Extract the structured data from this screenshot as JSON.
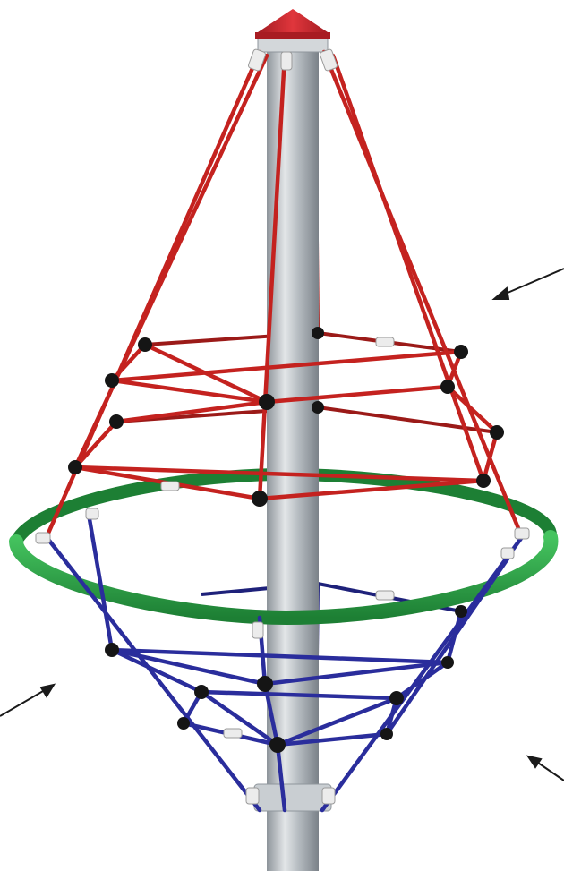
{
  "scene": {
    "subject_icon": "rope-climbing-spinner-icon",
    "colors": {
      "background": "#ffffff",
      "pole_light": "#d9dde0",
      "pole_mid": "#aab1b7",
      "pole_dark": "#7f878e",
      "cap": "#c8232c",
      "upper_rope": "#c4221f",
      "lower_rope": "#2a2d9c",
      "ring": "#2fa84a",
      "ring_dark": "#1d7f34",
      "connector": "#151515",
      "sleeve": "#e8e8e8",
      "arrow": "#1a1a1a"
    }
  },
  "arrows": [
    {
      "id": "arrow-upper-right",
      "icon": "arrow-icon"
    },
    {
      "id": "arrow-lower-left",
      "icon": "arrow-icon"
    },
    {
      "id": "arrow-lower-right",
      "icon": "arrow-icon"
    }
  ]
}
